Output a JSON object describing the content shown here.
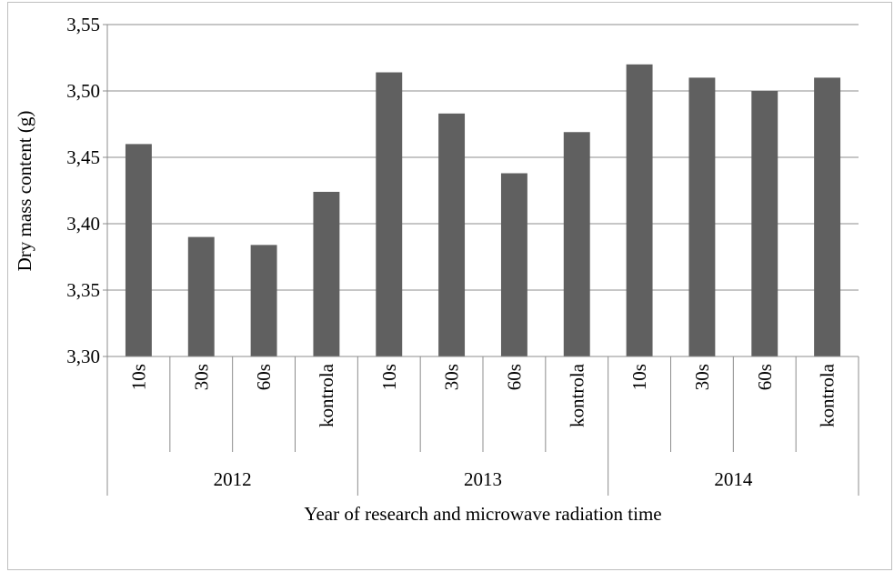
{
  "chart_data": {
    "type": "bar",
    "title": "",
    "xlabel": "Year of research and microwave radiation time",
    "ylabel": "Dry mass content (g)",
    "ylim": [
      3.3,
      3.55
    ],
    "yticks": [
      "3,30",
      "3,35",
      "3,40",
      "3,45",
      "3,50",
      "3,55"
    ],
    "ytick_values": [
      3.3,
      3.35,
      3.4,
      3.45,
      3.5,
      3.55
    ],
    "grid": true,
    "bar_color": "#606060",
    "groups": [
      {
        "label": "2012",
        "categories": [
          "10s",
          "30s",
          "60s",
          "kontrola"
        ],
        "values": [
          3.46,
          3.39,
          3.384,
          3.424
        ]
      },
      {
        "label": "2013",
        "categories": [
          "10s",
          "30s",
          "60s",
          "kontrola"
        ],
        "values": [
          3.514,
          3.483,
          3.438,
          3.469
        ]
      },
      {
        "label": "2014",
        "categories": [
          "10s",
          "30s",
          "60s",
          "kontrola"
        ],
        "values": [
          3.52,
          3.51,
          3.5,
          3.51
        ]
      }
    ]
  }
}
